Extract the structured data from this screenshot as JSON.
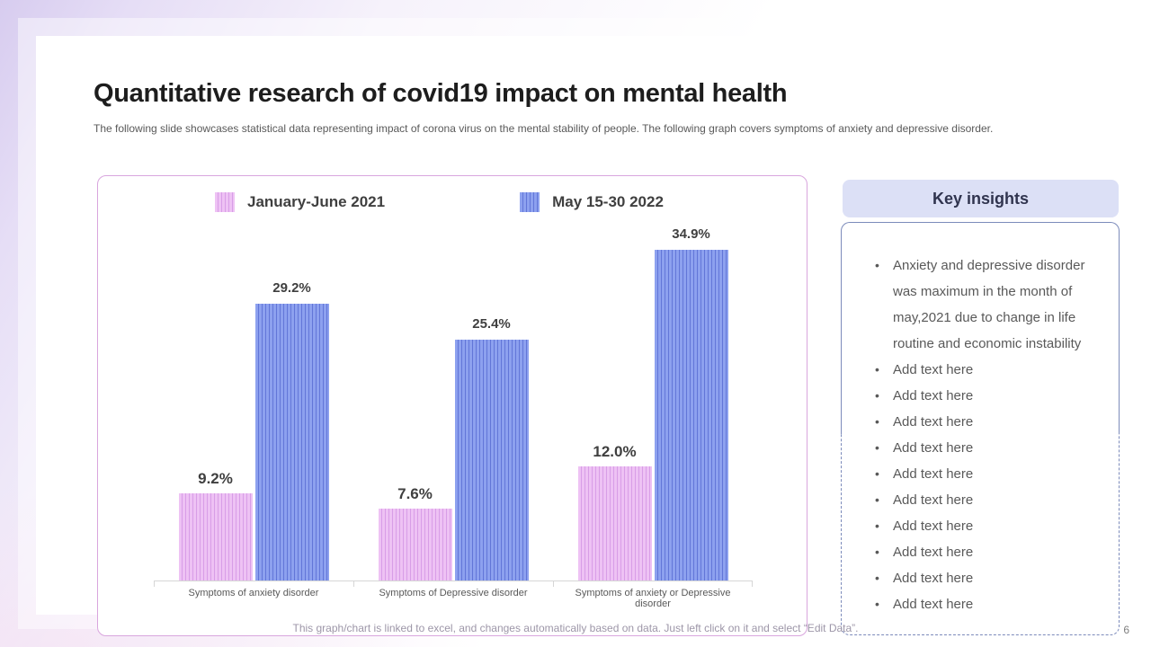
{
  "slide": {
    "title": "Quantitative research of covid19 impact on mental health",
    "subtitle": "The following slide showcases statistical data representing impact of corona virus on the mental stability of people. The following graph covers symptoms of anxiety and depressive disorder.",
    "footer_note": "This graph/chart is linked to excel, and changes automatically based on data. Just left click on it and select “Edit Data”.",
    "page_number": "6"
  },
  "chart_data": {
    "type": "bar",
    "title": "",
    "xlabel": "",
    "ylabel": "",
    "ylim": [
      0,
      40
    ],
    "grid": false,
    "legend_position": "top-inside",
    "value_format": "percent",
    "categories": [
      "Symptoms of anxiety disorder",
      "Symptoms of Depressive disorder",
      "Symptoms of anxiety or Depressive disorder"
    ],
    "series": [
      {
        "name": "January-June 2021",
        "values": [
          9.2,
          7.6,
          12.0
        ],
        "data_labels": [
          "9.2%",
          "7.6%",
          "12.0%"
        ],
        "fill_color": "#eec2f4",
        "stripe_color": "#d89de7"
      },
      {
        "name": "May 15-30  2022",
        "values": [
          29.2,
          25.4,
          34.9
        ],
        "data_labels": [
          "29.2%",
          "25.4%",
          "34.9%"
        ],
        "fill_color": "#8da1ef",
        "stripe_color": "#6276d8"
      }
    ]
  },
  "insights": {
    "header": "Key insights",
    "bullets": [
      "Anxiety and depressive disorder was maximum in the month of may,2021 due to change in life routine and economic instability",
      "Add text here",
      "Add text here",
      "Add text here",
      "Add text here",
      "Add text here",
      "Add text here",
      "Add text here",
      "Add text here",
      "Add text here",
      "Add text here"
    ]
  },
  "colors": {
    "chart_panel_border": "#d9a6de",
    "insights_border": "#7c8bbb",
    "insights_header_bg": "#dce0f6",
    "axis_line": "#d6d6d6",
    "background_accent": "#d7ccef"
  }
}
